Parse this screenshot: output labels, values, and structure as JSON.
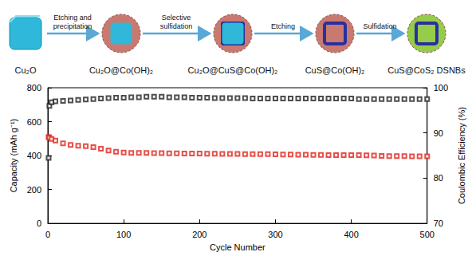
{
  "scheme": {
    "stages": [
      "Cu₂O",
      "Cu₂O@Co(OH)₂",
      "Cu₂O@CuS@Co(OH)₂",
      "CuS@Co(OH)₂",
      "CuS@CoS₂ DSNBs"
    ],
    "steps": [
      "Etching and precipitation",
      "Selective sulfidation",
      "Etching",
      "Sulfidation"
    ]
  },
  "chart_data": {
    "type": "scatter",
    "xlabel": "Cycle Number",
    "ylabel": "Capacity (mAh g⁻¹)",
    "y2label": "Coulombic Efficiency (%)",
    "x": [
      1,
      2,
      5,
      10,
      20,
      30,
      40,
      50,
      60,
      70,
      80,
      90,
      100,
      110,
      120,
      130,
      140,
      150,
      160,
      170,
      180,
      190,
      200,
      210,
      220,
      230,
      240,
      250,
      260,
      270,
      280,
      290,
      300,
      310,
      320,
      330,
      340,
      350,
      360,
      370,
      380,
      390,
      400,
      410,
      420,
      430,
      440,
      450,
      460,
      470,
      480,
      490,
      500
    ],
    "series": [
      {
        "color": "#e0241b",
        "marker": "square_open",
        "values": [
          510,
          505,
          498,
          488,
          472,
          462,
          458,
          455,
          450,
          440,
          430,
          422,
          418,
          416,
          415,
          415,
          414,
          414,
          413,
          413,
          412,
          412,
          412,
          411,
          411,
          410,
          410,
          410,
          409,
          409,
          408,
          408,
          407,
          406,
          406,
          405,
          405,
          404,
          404,
          403,
          403,
          403,
          402,
          402,
          401,
          400,
          398,
          397,
          397,
          397,
          396,
          396,
          396
        ]
      },
      {
        "color": "#222222",
        "marker": "square_open",
        "axis": "y2",
        "values": [
          84.5,
          96.0,
          96.8,
          97.0,
          97.1,
          97.2,
          97.3,
          97.4,
          97.5,
          97.6,
          97.7,
          97.8,
          97.8,
          97.9,
          97.9,
          98.0,
          98.0,
          98.0,
          97.9,
          97.9,
          97.9,
          97.8,
          97.8,
          97.8,
          97.7,
          97.7,
          97.7,
          97.7,
          97.7,
          97.6,
          97.6,
          97.6,
          97.6,
          97.6,
          97.6,
          97.6,
          97.6,
          97.6,
          97.6,
          97.6,
          97.6,
          97.6,
          97.6,
          97.5,
          97.5,
          97.5,
          97.5,
          97.5,
          97.5,
          97.5,
          97.5,
          97.5,
          97.5
        ]
      }
    ],
    "xlim": [
      0,
      500
    ],
    "xticks": [
      0,
      100,
      200,
      300,
      400,
      500
    ],
    "ylim": [
      0,
      800
    ],
    "yticks": [
      0,
      200,
      400,
      600,
      800
    ],
    "y2lim": [
      70,
      100
    ],
    "y2ticks": [
      70,
      80,
      90,
      100
    ],
    "grid": false
  }
}
